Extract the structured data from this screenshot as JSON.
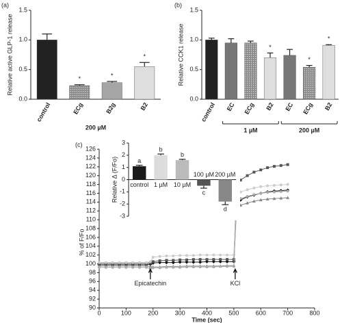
{
  "chart_data": [
    {
      "type": "bar",
      "panel": "(a)",
      "y_label": "Relative active GLP-1 release",
      "categories": [
        "control",
        "ECg",
        "B2g",
        "B2"
      ],
      "values": [
        1.0,
        0.23,
        0.28,
        0.55
      ],
      "errors": [
        0.1,
        0.015,
        0.02,
        0.07
      ],
      "colors": [
        "#222222",
        "#8a8a8a",
        "#a5a5a5",
        "#dedede"
      ],
      "patterns": [
        null,
        "dots",
        null,
        null
      ],
      "stars": [
        null,
        "*",
        "*",
        "*"
      ],
      "group_label": "200 µM",
      "ylim": [
        0,
        1.5
      ],
      "yticks": [
        {
          "value": 0,
          "label": "0.0"
        },
        0.5,
        {
          "value": 1,
          "label": "1.0"
        },
        1.5
      ]
    },
    {
      "type": "bar",
      "panel": "(b)",
      "y_label": "Relative CCK1 release",
      "categories": [
        "control",
        "EC",
        "ECg",
        "B2",
        "EC",
        "ECg",
        "B2"
      ],
      "values": [
        1.0,
        0.95,
        0.95,
        0.7,
        0.74,
        0.54,
        0.91
      ],
      "errors": [
        0.03,
        0.07,
        0.03,
        0.08,
        0.1,
        0.03,
        0.01
      ],
      "colors": [
        "#222222",
        "#777777",
        "#8a8a8a",
        "#dedede",
        "#777777",
        "#8a8a8a",
        "#dedede"
      ],
      "patterns": [
        null,
        null,
        "dots",
        null,
        null,
        "dots",
        null
      ],
      "stars": [
        null,
        null,
        null,
        "*",
        null,
        "*",
        "*"
      ],
      "group_labels": [
        "1 µM",
        "200 µM"
      ],
      "ylim": [
        0,
        1.5
      ],
      "yticks": [
        {
          "value": 0,
          "label": "0.0"
        },
        0.5,
        {
          "value": 1,
          "label": "1.0"
        },
        1.5
      ]
    },
    {
      "type": "line",
      "panel": "(c)",
      "x_label": "Time (sec)",
      "y_label": "% of F/Fo",
      "x": [
        0,
        25,
        50,
        75,
        100,
        125,
        150,
        175,
        190,
        200,
        225,
        250,
        275,
        300,
        325,
        350,
        375,
        400,
        425,
        450,
        475,
        500,
        510,
        525,
        550,
        575,
        600,
        625,
        650,
        675,
        700
      ],
      "series": [
        {
          "color": "#111111",
          "marker": "diamond",
          "values": [
            99.8,
            99.8,
            99.8,
            99.8,
            99.8,
            99.8,
            99.8,
            99.8,
            99.9,
            100.2,
            100.3,
            100.3,
            100.3,
            100.4,
            100.4,
            100.4,
            100.4,
            100.5,
            100.5,
            100.5,
            100.5,
            100.5,
            113.5,
            114.5,
            115.2,
            115.6,
            116,
            116.3,
            116.5,
            116.6,
            116.7
          ]
        },
        {
          "color": "#555555",
          "marker": "square",
          "values": [
            100.1,
            100.1,
            100.1,
            100.1,
            100.1,
            100.1,
            100.1,
            100.1,
            100.2,
            100.5,
            100.7,
            100.8,
            100.8,
            100.9,
            100.9,
            101,
            101,
            101,
            101,
            101,
            101,
            101,
            117.5,
            119,
            120,
            120.8,
            121.3,
            121.8,
            122.1,
            122.3,
            122.5
          ]
        },
        {
          "color": "#cccccc",
          "marker": "circle",
          "values": [
            100.3,
            100.3,
            100.3,
            100.3,
            100.3,
            100.3,
            100.3,
            100.3,
            100.5,
            101.5,
            101.7,
            101.8,
            101.8,
            101.9,
            101.9,
            101.9,
            102,
            102,
            102,
            102,
            102,
            102,
            115.5,
            116.3,
            116.8,
            117.2,
            117.5,
            117.7,
            117.8,
            117.9,
            118
          ]
        },
        {
          "color": "#888888",
          "marker": "triangle",
          "values": [
            99.5,
            99.5,
            99.5,
            99.5,
            99.5,
            99.5,
            99.5,
            99.5,
            99.4,
            99.3,
            99.3,
            99.4,
            99.4,
            99.4,
            99.5,
            99.5,
            99.5,
            99.5,
            99.5,
            99.5,
            99.6,
            99.6,
            112.5,
            113.3,
            113.8,
            114.2,
            114.5,
            114.7,
            114.8,
            114.9,
            115
          ]
        },
        {
          "color": "#aaaaaa",
          "marker": "circle",
          "values": [
            99.2,
            99.2,
            99.2,
            99.2,
            99.2,
            99.2,
            99.2,
            99.2,
            98.9,
            99.1,
            99.1,
            99.2,
            99.2,
            99.2,
            99.3,
            99.3,
            99.3,
            99.3,
            99.3,
            99.4,
            99.4,
            99.4,
            114,
            114.8,
            115.3,
            115.7,
            116,
            116.2,
            116.3,
            116.4,
            116.5
          ]
        }
      ],
      "annotations": [
        {
          "x": 190,
          "text": "Epicatechin"
        },
        {
          "x": 505,
          "text": "KCl"
        }
      ],
      "xlim": [
        0,
        800
      ],
      "xticks": [
        0,
        100,
        200,
        300,
        400,
        500,
        600,
        700,
        800
      ],
      "ylim": [
        90,
        126
      ],
      "yticks": [
        90,
        92,
        94,
        96,
        98,
        100,
        102,
        104,
        106,
        108,
        110,
        112,
        114,
        116,
        118,
        120,
        122,
        124,
        126
      ]
    },
    {
      "type": "bar",
      "inset": true,
      "y_label": "Relative Δ (F/Fo)",
      "categories": [
        "control",
        "1 µM",
        "10 µM",
        "100 µM",
        "200 µM"
      ],
      "values": [
        1.1,
        2.0,
        1.6,
        -0.5,
        -1.8
      ],
      "errors": [
        0.08,
        0.1,
        0.07,
        0.2,
        0.25
      ],
      "colors": [
        "#1a1a1a",
        "#dcdcdc",
        "#bbbbbb",
        "#555555",
        "#888888"
      ],
      "patterns": [
        null,
        null,
        null,
        null,
        null
      ],
      "letters": [
        "a",
        "b",
        "b",
        "c",
        "d"
      ],
      "ylim": [
        -3,
        3
      ],
      "yticks": [
        -3,
        -2,
        -1,
        0,
        1,
        2,
        3
      ]
    }
  ]
}
